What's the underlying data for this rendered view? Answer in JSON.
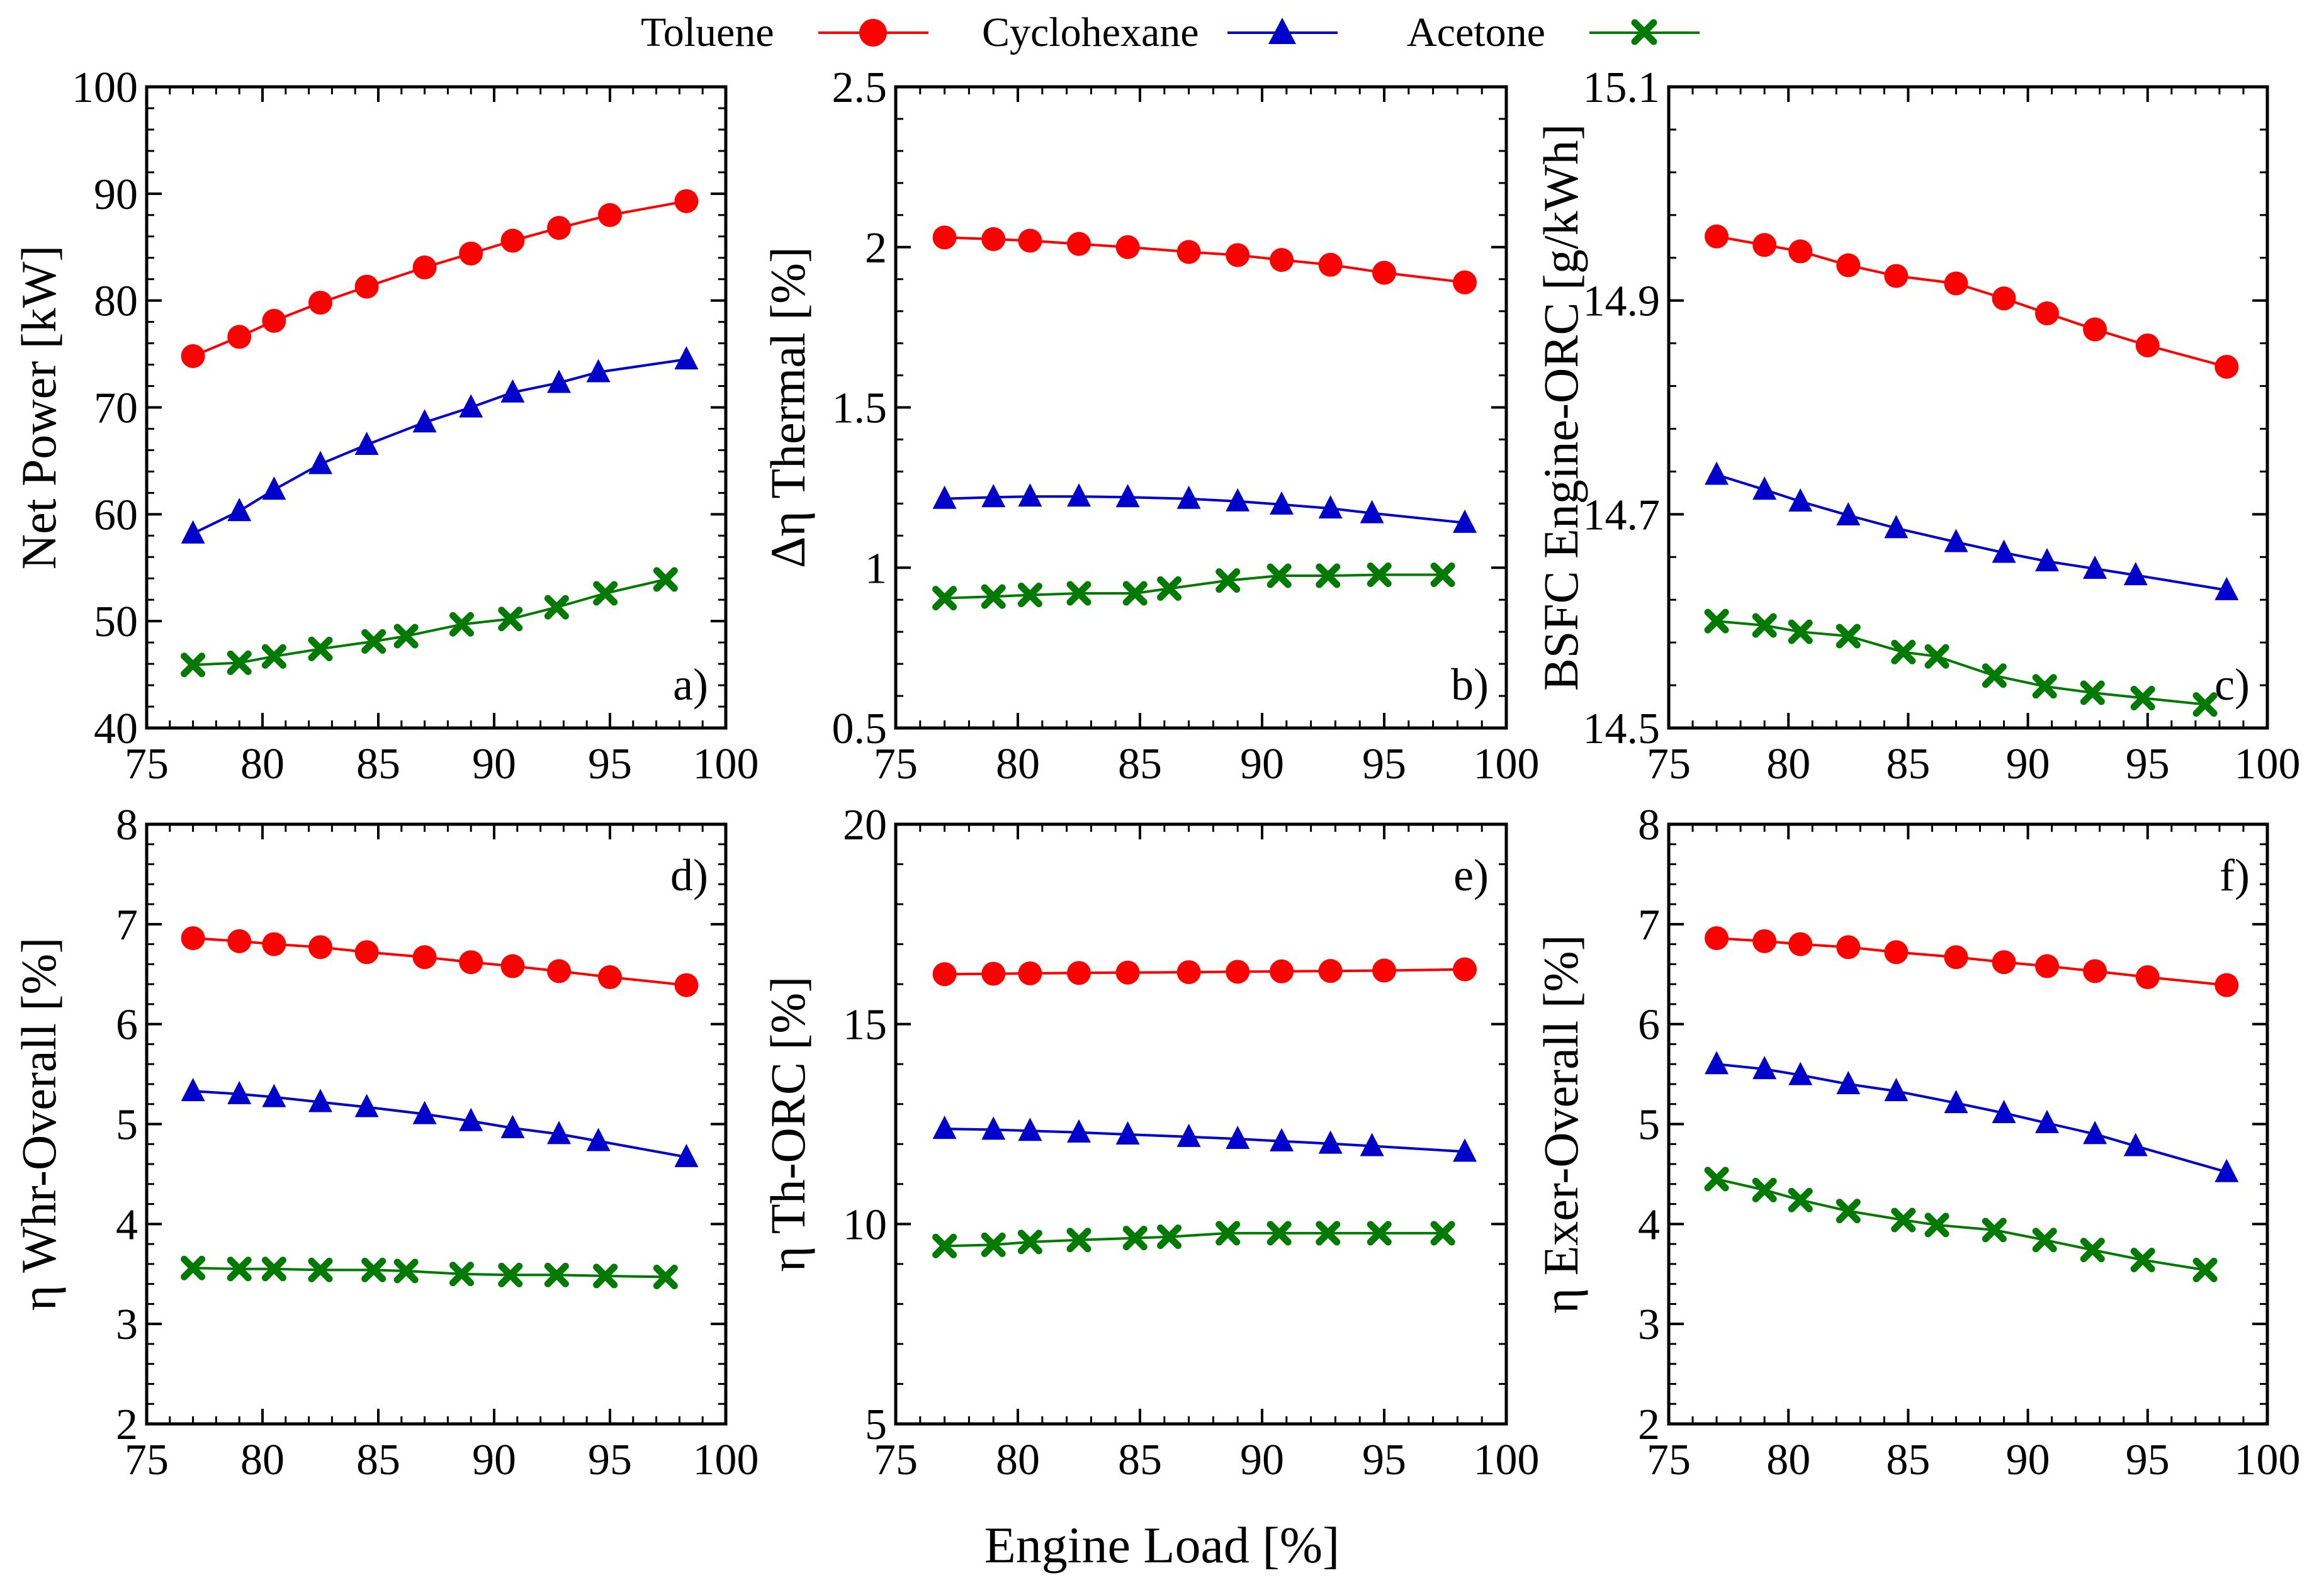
{
  "figure": {
    "xlabel": "Engine Load [%]"
  },
  "legend": {
    "items": [
      {
        "label": "Toluene",
        "color": "#ff0000",
        "marker": "circle"
      },
      {
        "label": "Cyclohexane",
        "color": "#0000cc",
        "marker": "triangle"
      },
      {
        "label": "Acetone",
        "color": "#007a00",
        "marker": "x"
      }
    ]
  },
  "chart_data": [
    {
      "type": "line",
      "tag": "a)",
      "ylabel": "Net Power [kW]",
      "xlim": [
        75,
        100
      ],
      "ylim": [
        40,
        100
      ],
      "xticks": [
        "75",
        "80",
        "85",
        "90",
        "95",
        "100"
      ],
      "yticks": [
        "40",
        "50",
        "60",
        "70",
        "80",
        "90",
        "100"
      ],
      "series": [
        {
          "name": "Toluene",
          "x": [
            77,
            79,
            80.5,
            82.5,
            84.5,
            87,
            89,
            90.8,
            92.8,
            95,
            98.3
          ],
          "y": [
            74.8,
            76.6,
            78.1,
            79.8,
            81.3,
            83.1,
            84.4,
            85.6,
            86.8,
            88.0,
            89.3
          ]
        },
        {
          "name": "Cyclohexane",
          "x": [
            77,
            79,
            80.5,
            82.5,
            84.5,
            87,
            89,
            90.8,
            92.8,
            94.5,
            98.3
          ],
          "y": [
            58.2,
            60.3,
            62.3,
            64.7,
            66.5,
            68.6,
            70.0,
            71.4,
            72.3,
            73.3,
            74.5
          ]
        },
        {
          "name": "Acetone",
          "x": [
            77,
            79,
            80.5,
            82.5,
            84.8,
            86.2,
            88.6,
            90.7,
            92.7,
            94.8,
            97.4
          ],
          "y": [
            45.9,
            46.1,
            46.7,
            47.4,
            48.1,
            48.6,
            49.7,
            50.2,
            51.3,
            52.6,
            53.9
          ]
        }
      ]
    },
    {
      "type": "line",
      "tag": "b)",
      "ylabel": "Δη Thermal [%]",
      "xlim": [
        75,
        100
      ],
      "ylim": [
        0.5,
        2.5
      ],
      "xticks": [
        "75",
        "80",
        "85",
        "90",
        "95",
        "100"
      ],
      "yticks": [
        "0.5",
        "1",
        "1.5",
        "2",
        "2.5"
      ],
      "series": [
        {
          "name": "Toluene",
          "x": [
            77,
            79,
            80.5,
            82.5,
            84.5,
            87,
            89,
            90.8,
            92.8,
            95,
            98.3
          ],
          "y": [
            2.03,
            2.025,
            2.02,
            2.01,
            2.0,
            1.985,
            1.975,
            1.96,
            1.945,
            1.92,
            1.89
          ]
        },
        {
          "name": "Cyclohexane",
          "x": [
            77,
            79,
            80.5,
            82.5,
            84.5,
            87,
            89,
            90.8,
            92.8,
            94.5,
            98.3
          ],
          "y": [
            1.215,
            1.22,
            1.222,
            1.222,
            1.22,
            1.215,
            1.207,
            1.197,
            1.185,
            1.17,
            1.14
          ]
        },
        {
          "name": "Acetone",
          "x": [
            77,
            79,
            80.5,
            82.5,
            84.8,
            86.2,
            88.6,
            90.7,
            92.7,
            94.8,
            97.4
          ],
          "y": [
            0.905,
            0.91,
            0.915,
            0.92,
            0.92,
            0.935,
            0.96,
            0.975,
            0.975,
            0.978,
            0.978
          ]
        }
      ]
    },
    {
      "type": "line",
      "tag": "c)",
      "ylabel": "BSFC Engine-ORC [g/kWh]",
      "xlim": [
        75,
        100
      ],
      "ylim": [
        14.5,
        15.1
      ],
      "xticks": [
        "75",
        "80",
        "85",
        "90",
        "95",
        "100"
      ],
      "yticks": [
        "14.5",
        "14.7",
        "14.9",
        "15.1"
      ],
      "series": [
        {
          "name": "Toluene",
          "x": [
            77,
            79,
            80.5,
            82.5,
            84.5,
            87,
            89,
            90.8,
            92.8,
            95,
            98.3
          ],
          "y": [
            14.96,
            14.952,
            14.946,
            14.933,
            14.923,
            14.916,
            14.902,
            14.888,
            14.873,
            14.858,
            14.838
          ]
        },
        {
          "name": "Cyclohexane",
          "x": [
            77,
            79,
            80.5,
            82.5,
            84.5,
            87,
            89,
            90.8,
            92.8,
            94.5,
            98.3
          ],
          "y": [
            14.737,
            14.723,
            14.712,
            14.699,
            14.687,
            14.674,
            14.664,
            14.656,
            14.649,
            14.643,
            14.629
          ]
        },
        {
          "name": "Acetone",
          "x": [
            77,
            79,
            80.5,
            82.5,
            84.8,
            86.2,
            88.6,
            90.7,
            92.7,
            94.8,
            97.4
          ],
          "y": [
            14.6,
            14.596,
            14.59,
            14.586,
            14.571,
            14.567,
            14.549,
            14.539,
            14.533,
            14.528,
            14.522
          ]
        }
      ]
    },
    {
      "type": "line",
      "tag": "d)",
      "ylabel": "η Whr-Overall [%]",
      "xlim": [
        75,
        100
      ],
      "ylim": [
        2,
        8
      ],
      "xticks": [
        "75",
        "80",
        "85",
        "90",
        "95",
        "100"
      ],
      "yticks": [
        "2",
        "3",
        "4",
        "5",
        "6",
        "7",
        "8"
      ],
      "series": [
        {
          "name": "Toluene",
          "x": [
            77,
            79,
            80.5,
            82.5,
            84.5,
            87,
            89,
            90.8,
            92.8,
            95,
            98.3
          ],
          "y": [
            6.86,
            6.83,
            6.8,
            6.77,
            6.72,
            6.67,
            6.62,
            6.58,
            6.53,
            6.47,
            6.39
          ]
        },
        {
          "name": "Cyclohexane",
          "x": [
            77,
            79,
            80.5,
            82.5,
            84.5,
            87,
            89,
            90.8,
            92.8,
            94.5,
            98.3
          ],
          "y": [
            5.33,
            5.3,
            5.27,
            5.22,
            5.17,
            5.1,
            5.03,
            4.96,
            4.9,
            4.83,
            4.67
          ]
        },
        {
          "name": "Acetone",
          "x": [
            77,
            79,
            80.5,
            82.5,
            84.8,
            86.2,
            88.6,
            90.7,
            92.7,
            94.8,
            97.4
          ],
          "y": [
            3.56,
            3.55,
            3.55,
            3.54,
            3.54,
            3.53,
            3.5,
            3.49,
            3.49,
            3.48,
            3.47
          ]
        }
      ]
    },
    {
      "type": "line",
      "tag": "e)",
      "ylabel": "η Th-ORC [%]",
      "xlim": [
        75,
        100
      ],
      "ylim": [
        5,
        20
      ],
      "xticks": [
        "75",
        "80",
        "85",
        "90",
        "95",
        "100"
      ],
      "yticks": [
        "5",
        "10",
        "15",
        "20"
      ],
      "series": [
        {
          "name": "Toluene",
          "x": [
            77,
            79,
            80.5,
            82.5,
            84.5,
            87,
            89,
            90.8,
            92.8,
            95,
            98.3
          ],
          "y": [
            16.25,
            16.26,
            16.27,
            16.28,
            16.29,
            16.3,
            16.31,
            16.32,
            16.33,
            16.34,
            16.37
          ]
        },
        {
          "name": "Cyclohexane",
          "x": [
            77,
            79,
            80.5,
            82.5,
            84.5,
            87,
            89,
            90.8,
            92.8,
            94.5,
            98.3
          ],
          "y": [
            12.38,
            12.36,
            12.33,
            12.29,
            12.24,
            12.18,
            12.13,
            12.07,
            12.01,
            11.95,
            11.81
          ]
        },
        {
          "name": "Acetone",
          "x": [
            77,
            79,
            80.5,
            82.5,
            84.8,
            86.2,
            88.6,
            90.7,
            92.7,
            94.8,
            97.4
          ],
          "y": [
            9.45,
            9.48,
            9.55,
            9.6,
            9.65,
            9.68,
            9.77,
            9.77,
            9.77,
            9.77,
            9.77
          ]
        }
      ]
    },
    {
      "type": "line",
      "tag": "f)",
      "ylabel": "η Exer-Overall [%]",
      "xlim": [
        75,
        100
      ],
      "ylim": [
        2,
        8
      ],
      "xticks": [
        "75",
        "80",
        "85",
        "90",
        "95",
        "100"
      ],
      "yticks": [
        "2",
        "3",
        "4",
        "5",
        "6",
        "7",
        "8"
      ],
      "series": [
        {
          "name": "Toluene",
          "x": [
            77,
            79,
            80.5,
            82.5,
            84.5,
            87,
            89,
            90.8,
            92.8,
            95,
            98.3
          ],
          "y": [
            6.86,
            6.83,
            6.8,
            6.77,
            6.72,
            6.67,
            6.62,
            6.58,
            6.53,
            6.47,
            6.39
          ]
        },
        {
          "name": "Cyclohexane",
          "x": [
            77,
            79,
            80.5,
            82.5,
            84.5,
            87,
            89,
            90.8,
            92.8,
            94.5,
            98.3
          ],
          "y": [
            5.6,
            5.55,
            5.49,
            5.4,
            5.33,
            5.21,
            5.11,
            5.01,
            4.9,
            4.78,
            4.52
          ]
        },
        {
          "name": "Acetone",
          "x": [
            77,
            79,
            80.5,
            82.5,
            84.8,
            86.2,
            88.6,
            90.7,
            92.7,
            94.8,
            97.4
          ],
          "y": [
            4.45,
            4.34,
            4.24,
            4.13,
            4.04,
            3.99,
            3.94,
            3.84,
            3.74,
            3.64,
            3.54
          ]
        }
      ]
    }
  ]
}
